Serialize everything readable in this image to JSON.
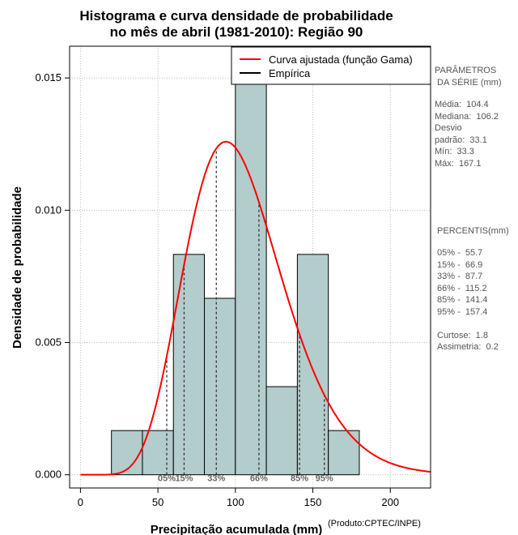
{
  "chart_data": {
    "type": "bar",
    "title_line1": "Histograma e curva densidade de probabilidade",
    "title_line2": "no mês de abril (1981-2010): Região 90",
    "xlabel": "Precipitação acumulada (mm)",
    "ylabel": "Densidade de probabilidade",
    "xlim": [
      -7,
      226
    ],
    "ylim": [
      -0.0005,
      0.0162
    ],
    "x_ticks": [
      0,
      50,
      100,
      150,
      200
    ],
    "y_ticks": [
      0.0,
      0.005,
      0.01,
      0.015
    ],
    "x_tick_labels": [
      "0",
      "50",
      "100",
      "150",
      "200"
    ],
    "y_tick_labels": [
      "0.000",
      "0.005",
      "0.010",
      "0.015"
    ],
    "grid": true,
    "bin_edges": [
      20,
      40,
      60,
      80,
      100,
      120,
      140,
      160,
      180
    ],
    "values": [
      0.00167,
      0.00167,
      0.00833,
      0.00667,
      0.015,
      0.00333,
      0.00833,
      0.00167
    ],
    "bar_color": "#b3cccc",
    "curve": {
      "name": "Curva ajustada (função Gama)",
      "color": "#ff0000",
      "mean": 104.4,
      "sd": 33.1
    },
    "legend": {
      "placement": "top-right",
      "entries": [
        {
          "label": "Curva ajustada (função Gama)",
          "color": "#ff0000"
        },
        {
          "label": "Empírica",
          "color": "#000000"
        }
      ]
    },
    "percentiles": [
      {
        "label": "05%",
        "value": 55.7
      },
      {
        "label": "15%",
        "value": 66.9
      },
      {
        "label": "33%",
        "value": 87.7
      },
      {
        "label": "66%",
        "value": 115.2
      },
      {
        "label": "85%",
        "value": 141.4
      },
      {
        "label": "95%",
        "value": 157.4
      }
    ]
  },
  "side_panel": {
    "params_title": "PARÂMETROS\n DA SÉRIE (mm)",
    "params_body": "Média:  104.4\nMediana:  106.2\nDesvio\npadrão:  33.1\nMín:  33.3\nMáx:  167.1",
    "percentis_title": " PERCENTIS(mm)",
    "percentis_body": "05% -  55.7\n15% -  66.9\n33% -  87.7\n66% -  115.2\n85% -  141.4\n95% -  157.4\n\nCurtose:  1.8\nAssimetria:  0.2"
  },
  "credit": "(Produto:CPTEC/INPE)"
}
